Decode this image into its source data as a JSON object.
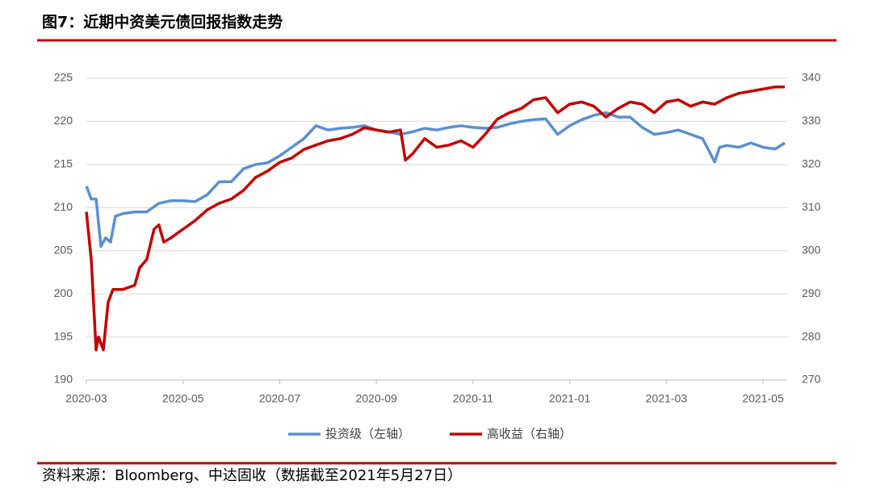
{
  "chart_data": {
    "type": "line",
    "title": "图7：近期中资美元债回报指数走势",
    "source": "资料来源：Bloomberg、中达固收（数据截至2021年5月27日）",
    "xlim": [
      0,
      14.5
    ],
    "xticks": [
      {
        "value": 0,
        "label": "2020-03"
      },
      {
        "value": 2,
        "label": "2020-05"
      },
      {
        "value": 4,
        "label": "2020-07"
      },
      {
        "value": 6,
        "label": "2020-09"
      },
      {
        "value": 8,
        "label": "2020-11"
      },
      {
        "value": 10,
        "label": "2021-01"
      },
      {
        "value": 12,
        "label": "2021-03"
      },
      {
        "value": 14,
        "label": "2021-05"
      }
    ],
    "ylim": [
      190,
      225
    ],
    "yticks": [
      190,
      195,
      200,
      205,
      210,
      215,
      220,
      225
    ],
    "y2lim": [
      270,
      340
    ],
    "y2ticks": [
      270,
      280,
      290,
      300,
      310,
      320,
      330,
      340
    ],
    "grid": true,
    "legend": "bottom",
    "series": [
      {
        "name": "投资级（左轴）",
        "color": "#5b8fd0",
        "x": [
          0,
          0.1,
          0.2,
          0.3,
          0.4,
          0.5,
          0.6,
          0.75,
          1.0,
          1.25,
          1.5,
          1.75,
          2.0,
          2.25,
          2.5,
          2.75,
          3.0,
          3.25,
          3.5,
          3.75,
          4.0,
          4.25,
          4.5,
          4.75,
          5.0,
          5.25,
          5.5,
          5.75,
          6.0,
          6.25,
          6.5,
          6.75,
          7.0,
          7.25,
          7.5,
          7.75,
          8.0,
          8.25,
          8.5,
          8.75,
          9.0,
          9.25,
          9.5,
          9.75,
          10.0,
          10.25,
          10.5,
          10.75,
          11.0,
          11.25,
          11.5,
          11.75,
          12.0,
          12.25,
          12.5,
          12.75,
          13.0,
          13.1,
          13.25,
          13.5,
          13.75,
          14.0,
          14.25,
          14.45
        ],
        "values": [
          212.5,
          211,
          211,
          205.5,
          206.5,
          206,
          209,
          209.3,
          209.5,
          209.5,
          210.5,
          210.8,
          210.8,
          210.7,
          211.5,
          213,
          213,
          214.5,
          215,
          215.2,
          216,
          217,
          218,
          219.5,
          219,
          219.2,
          219.3,
          219.5,
          219,
          218.8,
          218.5,
          218.8,
          219.2,
          219,
          219.3,
          219.5,
          219.3,
          219.2,
          219.3,
          219.7,
          220,
          220.2,
          220.3,
          218.5,
          219.5,
          220.2,
          220.7,
          221,
          220.5,
          220.5,
          219.3,
          218.5,
          218.7,
          219,
          218.5,
          218,
          215.3,
          217,
          217.2,
          217,
          217.5,
          217,
          216.8,
          217.5
        ]
      },
      {
        "name": "高收益（右轴）",
        "color": "#c00000",
        "axis": "y2",
        "x": [
          0,
          0.1,
          0.2,
          0.25,
          0.35,
          0.45,
          0.55,
          0.75,
          1.0,
          1.1,
          1.25,
          1.4,
          1.5,
          1.6,
          1.75,
          2.0,
          2.25,
          2.5,
          2.75,
          3.0,
          3.25,
          3.5,
          3.75,
          4.0,
          4.25,
          4.5,
          4.75,
          5.0,
          5.25,
          5.5,
          5.75,
          6.0,
          6.25,
          6.5,
          6.6,
          6.75,
          7.0,
          7.25,
          7.5,
          7.75,
          8.0,
          8.25,
          8.5,
          8.75,
          9.0,
          9.25,
          9.5,
          9.75,
          10.0,
          10.25,
          10.5,
          10.75,
          11.0,
          11.25,
          11.5,
          11.75,
          12.0,
          12.25,
          12.5,
          12.75,
          13.0,
          13.25,
          13.5,
          13.75,
          14.0,
          14.25,
          14.45
        ],
        "values": [
          309,
          298,
          277,
          280,
          277,
          288,
          291,
          291,
          292,
          296,
          298,
          305,
          306,
          302,
          303,
          305,
          307,
          309.5,
          311,
          312,
          314,
          317,
          318.5,
          320.5,
          321.5,
          323.5,
          324.5,
          325.5,
          326,
          327,
          328.5,
          328,
          327.5,
          328,
          321,
          322.5,
          326,
          324,
          324.5,
          325.5,
          324,
          327,
          330.5,
          332,
          333,
          335,
          335.5,
          332,
          334,
          334.5,
          333.5,
          331,
          333,
          334.5,
          334,
          332,
          334.5,
          335,
          333.5,
          334.5,
          334,
          335.5,
          336.5,
          337,
          337.5,
          338,
          338
        ]
      }
    ]
  }
}
